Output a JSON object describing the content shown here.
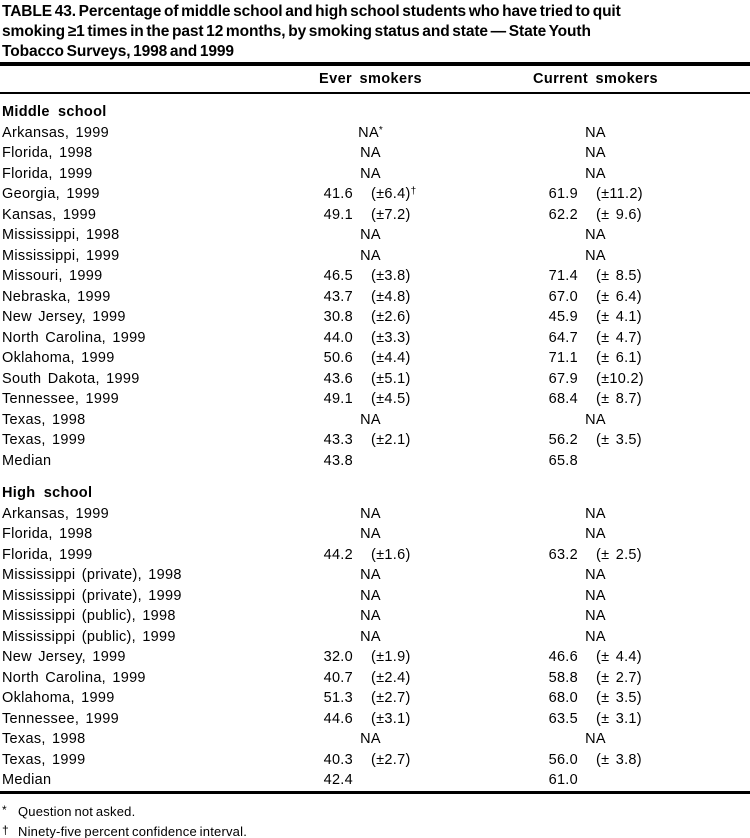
{
  "page": {
    "title_lines": [
      "TABLE 43. Percentage of middle school and high school students who have tried to quit",
      "smoking ≥1 times in the past 12 months, by smoking status and state — State Youth",
      "Tobacco Surveys, 1998 and 1999"
    ]
  },
  "table": {
    "column_headers": [
      "Ever smokers",
      "Current smokers"
    ],
    "sections": [
      {
        "label": "Middle school",
        "rows": [
          {
            "state": "Arkansas, 1999",
            "ever": {
              "na": "NA",
              "sup": "*"
            },
            "current": {
              "na": "NA"
            }
          },
          {
            "state": "Florida, 1998",
            "ever": {
              "na": "NA"
            },
            "current": {
              "na": "NA"
            }
          },
          {
            "state": "Florida, 1999",
            "ever": {
              "na": "NA"
            },
            "current": {
              "na": "NA"
            }
          },
          {
            "state": "Georgia, 1999",
            "ever": {
              "v": "41.6",
              "ci": "(±6.4)",
              "sup": "†"
            },
            "current": {
              "v": "61.9",
              "ci": "(±11.2)"
            }
          },
          {
            "state": "Kansas, 1999",
            "ever": {
              "v": "49.1",
              "ci": "(±7.2)"
            },
            "current": {
              "v": "62.2",
              "ci": "(± 9.6)"
            }
          },
          {
            "state": "Mississippi, 1998",
            "ever": {
              "na": "NA"
            },
            "current": {
              "na": "NA"
            }
          },
          {
            "state": "Mississippi, 1999",
            "ever": {
              "na": "NA"
            },
            "current": {
              "na": "NA"
            }
          },
          {
            "state": "Missouri, 1999",
            "ever": {
              "v": "46.5",
              "ci": "(±3.8)"
            },
            "current": {
              "v": "71.4",
              "ci": "(± 8.5)"
            }
          },
          {
            "state": "Nebraska, 1999",
            "ever": {
              "v": "43.7",
              "ci": "(±4.8)"
            },
            "current": {
              "v": "67.0",
              "ci": "(± 6.4)"
            }
          },
          {
            "state": "New Jersey, 1999",
            "ever": {
              "v": "30.8",
              "ci": "(±2.6)"
            },
            "current": {
              "v": "45.9",
              "ci": "(± 4.1)"
            }
          },
          {
            "state": "North Carolina, 1999",
            "ever": {
              "v": "44.0",
              "ci": "(±3.3)"
            },
            "current": {
              "v": "64.7",
              "ci": "(± 4.7)"
            }
          },
          {
            "state": "Oklahoma, 1999",
            "ever": {
              "v": "50.6",
              "ci": "(±4.4)"
            },
            "current": {
              "v": "71.1",
              "ci": "(± 6.1)"
            }
          },
          {
            "state": "South Dakota, 1999",
            "ever": {
              "v": "43.6",
              "ci": "(±5.1)"
            },
            "current": {
              "v": "67.9",
              "ci": "(±10.2)"
            }
          },
          {
            "state": "Tennessee, 1999",
            "ever": {
              "v": "49.1",
              "ci": "(±4.5)"
            },
            "current": {
              "v": "68.4",
              "ci": "(± 8.7)"
            }
          },
          {
            "state": "Texas, 1998",
            "ever": {
              "na": "NA"
            },
            "current": {
              "na": "NA"
            }
          },
          {
            "state": "Texas, 1999",
            "ever": {
              "v": "43.3",
              "ci": "(±2.1)"
            },
            "current": {
              "v": "56.2",
              "ci": "(± 3.5)"
            }
          },
          {
            "state": "Median",
            "ever": {
              "v": "43.8",
              "ci": ""
            },
            "current": {
              "v": "65.8",
              "ci": ""
            }
          }
        ]
      },
      {
        "label": "High school",
        "rows": [
          {
            "state": "Arkansas, 1999",
            "ever": {
              "na": "NA"
            },
            "current": {
              "na": "NA"
            }
          },
          {
            "state": "Florida, 1998",
            "ever": {
              "na": "NA"
            },
            "current": {
              "na": "NA"
            }
          },
          {
            "state": "Florida, 1999",
            "ever": {
              "v": "44.2",
              "ci": "(±1.6)"
            },
            "current": {
              "v": "63.2",
              "ci": "(± 2.5)"
            }
          },
          {
            "state": "Mississippi (private), 1998",
            "ever": {
              "na": "NA"
            },
            "current": {
              "na": "NA"
            }
          },
          {
            "state": "Mississippi (private), 1999",
            "ever": {
              "na": "NA"
            },
            "current": {
              "na": "NA"
            }
          },
          {
            "state": "Mississippi (public), 1998",
            "ever": {
              "na": "NA"
            },
            "current": {
              "na": "NA"
            }
          },
          {
            "state": "Mississippi (public), 1999",
            "ever": {
              "na": "NA"
            },
            "current": {
              "na": "NA"
            }
          },
          {
            "state": "New Jersey, 1999",
            "ever": {
              "v": "32.0",
              "ci": "(±1.9)"
            },
            "current": {
              "v": "46.6",
              "ci": "(± 4.4)"
            }
          },
          {
            "state": "North Carolina, 1999",
            "ever": {
              "v": "40.7",
              "ci": "(±2.4)"
            },
            "current": {
              "v": "58.8",
              "ci": "(± 2.7)"
            }
          },
          {
            "state": "Oklahoma, 1999",
            "ever": {
              "v": "51.3",
              "ci": "(±2.7)"
            },
            "current": {
              "v": "68.0",
              "ci": "(± 3.5)"
            }
          },
          {
            "state": "Tennessee, 1999",
            "ever": {
              "v": "44.6",
              "ci": "(±3.1)"
            },
            "current": {
              "v": "63.5",
              "ci": "(± 3.1)"
            }
          },
          {
            "state": "Texas, 1998",
            "ever": {
              "na": "NA"
            },
            "current": {
              "na": "NA"
            }
          },
          {
            "state": "Texas, 1999",
            "ever": {
              "v": "40.3",
              "ci": "(±2.7)"
            },
            "current": {
              "v": "56.0",
              "ci": "(± 3.8)"
            }
          },
          {
            "state": "Median",
            "ever": {
              "v": "42.4",
              "ci": ""
            },
            "current": {
              "v": "61.0",
              "ci": ""
            }
          }
        ]
      }
    ],
    "footnotes": [
      {
        "symbol": "*",
        "text": "Question not asked."
      },
      {
        "symbol": "†",
        "text": "Ninety-five percent confidence interval."
      }
    ]
  }
}
